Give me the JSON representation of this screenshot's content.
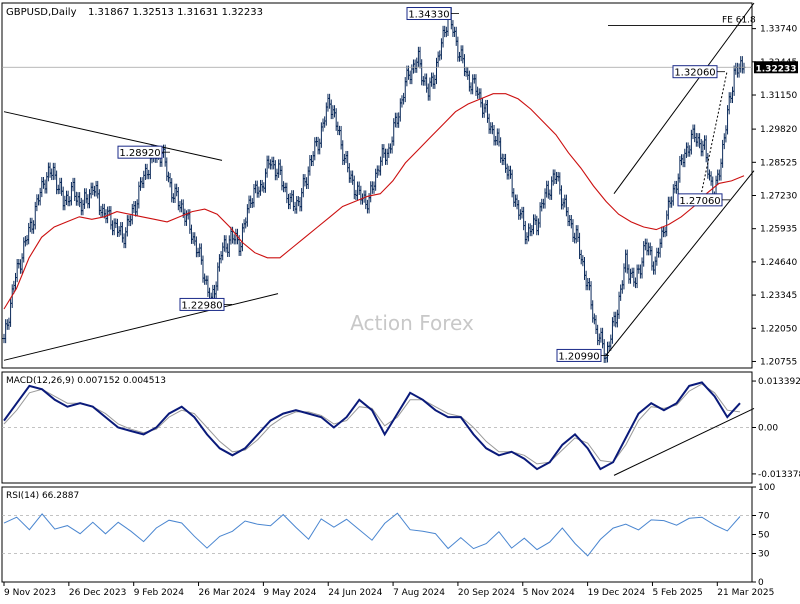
{
  "header": {
    "symbol": "GBPUSD,Daily",
    "ohlc": "1.31867 1.32513 1.31631 1.32233"
  },
  "watermark": "Action Forex",
  "colors": {
    "price_bars": "#0b2a5a",
    "ma_line": "#cc1010",
    "macd_line": "#0a1a7a",
    "signal_line": "#9a9a9a",
    "rsi_line": "#4a86d0",
    "trendline": "#000000",
    "grid": "#b0b0b0",
    "current_price_box": "#000000"
  },
  "chart_data": [
    {
      "type": "line",
      "title": "GBPUSD,Daily",
      "series": [
        {
          "name": "GBPUSD",
          "values": [
            1.215,
            1.238,
            1.252,
            1.264,
            1.278,
            1.282,
            1.27,
            1.274,
            1.268,
            1.276,
            1.266,
            1.262,
            1.256,
            1.265,
            1.278,
            1.287,
            1.2892,
            1.274,
            1.268,
            1.258,
            1.246,
            1.2298,
            1.25,
            1.256,
            1.254,
            1.272,
            1.275,
            1.286,
            1.28,
            1.269,
            1.27,
            1.285,
            1.295,
            1.31,
            1.295,
            1.28,
            1.272,
            1.27,
            1.285,
            1.29,
            1.305,
            1.32,
            1.325,
            1.312,
            1.325,
            1.3433,
            1.33,
            1.318,
            1.313,
            1.302,
            1.293,
            1.282,
            1.268,
            1.257,
            1.262,
            1.274,
            1.28,
            1.265,
            1.256,
            1.24,
            1.22,
            1.2099,
            1.225,
            1.246,
            1.238,
            1.253,
            1.245,
            1.262,
            1.276,
            1.289,
            1.296,
            1.29,
            1.2706,
            1.295,
            1.3206,
            1.3223
          ],
          "x_start": "2023-11-09",
          "x_end": "2025-04-01"
        },
        {
          "name": "MA",
          "values": [
            1.228,
            1.236,
            1.248,
            1.256,
            1.26,
            1.262,
            1.264,
            1.263,
            1.264,
            1.266,
            1.265,
            1.264,
            1.263,
            1.262,
            1.264,
            1.266,
            1.267,
            1.265,
            1.26,
            1.254,
            1.25,
            1.248,
            1.248,
            1.252,
            1.256,
            1.26,
            1.264,
            1.268,
            1.27,
            1.272,
            1.273,
            1.278,
            1.285,
            1.29,
            1.295,
            1.3,
            1.305,
            1.308,
            1.31,
            1.312,
            1.312,
            1.31,
            1.306,
            1.301,
            1.296,
            1.289,
            1.283,
            1.276,
            1.27,
            1.265,
            1.262,
            1.26,
            1.259,
            1.261,
            1.264,
            1.268,
            1.273,
            1.277,
            1.278,
            1.28
          ]
        }
      ],
      "ylim": [
        1.205,
        1.3474
      ],
      "yticks": [
        "1.33740",
        "1.32445",
        "1.31150",
        "1.29820",
        "1.28525",
        "1.27230",
        "1.25935",
        "1.24640",
        "1.23345",
        "1.22050",
        "1.20755"
      ],
      "xticks": [
        "9 Nov 2023",
        "26 Dec 2023",
        "9 Feb 2024",
        "26 Mar 2024",
        "9 May 2024",
        "24 Jun 2024",
        "7 Aug 2024",
        "20 Sep 2024",
        "5 Nov 2024",
        "19 Dec 2024",
        "5 Feb 2025",
        "21 Mar 2025"
      ],
      "annotations": [
        {
          "label": "1.34330",
          "value": 1.3433
        },
        {
          "label": "1.28920",
          "value": 1.2892
        },
        {
          "label": "1.22980",
          "value": 1.2298
        },
        {
          "label": "1.20990",
          "value": 1.2099
        },
        {
          "label": "1.32060",
          "value": 1.3206
        },
        {
          "label": "1.27060",
          "value": 1.2706
        },
        {
          "label": "FE 61.8",
          "value": 1.3386
        }
      ],
      "current_price": "1.32233"
    },
    {
      "type": "line",
      "title": "MACD(12,26,9) 0.007152 0.004513",
      "series": [
        {
          "name": "MACD",
          "values": [
            0.002,
            0.007,
            0.012,
            0.011,
            0.008,
            0.006,
            0.007,
            0.006,
            0.003,
            0.0,
            -0.001,
            -0.002,
            0.0,
            0.004,
            0.006,
            0.003,
            -0.002,
            -0.006,
            -0.008,
            -0.006,
            -0.002,
            0.002,
            0.004,
            0.005,
            0.004,
            0.003,
            0.0,
            0.003,
            0.008,
            0.005,
            -0.002,
            0.004,
            0.01,
            0.008,
            0.005,
            0.003,
            0.003,
            -0.002,
            -0.006,
            -0.008,
            -0.007,
            -0.009,
            -0.012,
            -0.01,
            -0.005,
            -0.002,
            -0.006,
            -0.012,
            -0.01,
            -0.003,
            0.004,
            0.007,
            0.005,
            0.007,
            0.012,
            0.013,
            0.009,
            0.003,
            0.007
          ]
        },
        {
          "name": "Signal",
          "values": [
            0.001,
            0.005,
            0.01,
            0.011,
            0.009,
            0.007,
            0.007,
            0.006,
            0.004,
            0.001,
            -0.0005,
            -0.0015,
            -0.0005,
            0.003,
            0.005,
            0.004,
            0.0,
            -0.004,
            -0.007,
            -0.0065,
            -0.0035,
            0.0005,
            0.003,
            0.0045,
            0.0045,
            0.0035,
            0.001,
            0.002,
            0.006,
            0.0055,
            0.0005,
            0.003,
            0.008,
            0.008,
            0.006,
            0.004,
            0.0032,
            0.0,
            -0.004,
            -0.007,
            -0.007,
            -0.008,
            -0.0105,
            -0.01,
            -0.0065,
            -0.003,
            -0.0045,
            -0.0095,
            -0.01,
            -0.005,
            0.002,
            0.006,
            0.0055,
            0.0065,
            0.0105,
            0.0125,
            0.01,
            0.005,
            0.0045
          ]
        }
      ],
      "ylim": [
        -0.016,
        0.016
      ],
      "yticks": [
        "0.013392",
        "0.00",
        "-0.013378"
      ]
    },
    {
      "type": "line",
      "title": "RSI(14) 66.2887",
      "series": [
        {
          "name": "RSI",
          "values": [
            62,
            66,
            58,
            70,
            55,
            62,
            48,
            64,
            52,
            60,
            56,
            42,
            55,
            68,
            60,
            48,
            38,
            45,
            55,
            65,
            58,
            62,
            70,
            56,
            48,
            64,
            58,
            68,
            52,
            46,
            62,
            70,
            58,
            52,
            50,
            38,
            44,
            36,
            42,
            50,
            38,
            46,
            32,
            45,
            55,
            40,
            30,
            42,
            58,
            62,
            52,
            68,
            64,
            58,
            70,
            66,
            60,
            56,
            66
          ]
        }
      ],
      "ylim": [
        0,
        100
      ],
      "yticks": [
        "100",
        "70",
        "50",
        "30",
        "0"
      ]
    }
  ]
}
